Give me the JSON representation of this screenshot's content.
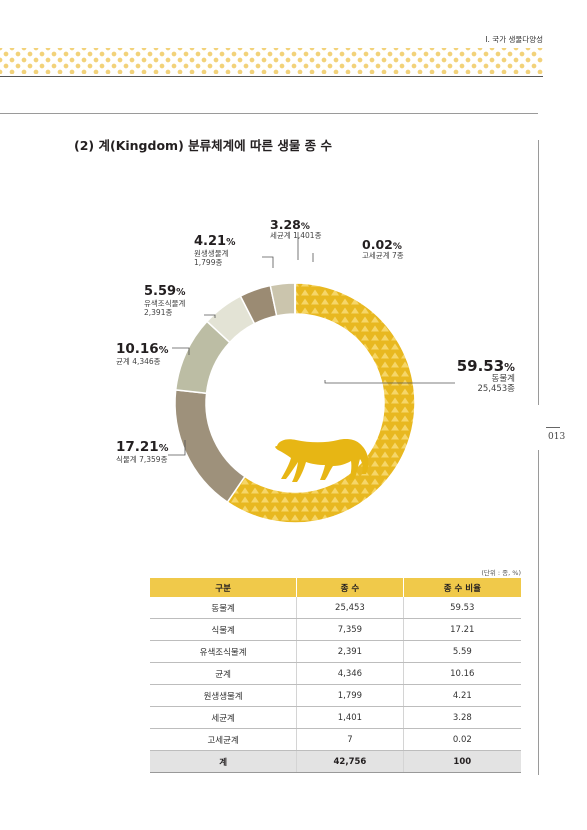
{
  "header": {
    "running_title": "Ⅰ. 국가 생물다양성"
  },
  "page_number": "013",
  "section_title": "(2) 계(Kingdom) 분류체계에 따른 생물 종 수",
  "colors": {
    "animal": "#e8b820",
    "plant": "#9e917b",
    "fungi": "#bcbda4",
    "chromista": "#e3e3d5",
    "protozoa": "#9b8b73",
    "bacteria": "#cbc5ad",
    "archaea": "#7f7663",
    "header_dots": "#f2d27a"
  },
  "chart_data": {
    "type": "pie",
    "variant": "donut",
    "labels": [
      {
        "key": "animal",
        "pct": "59.53",
        "name": "동물계",
        "count": "25,453종"
      },
      {
        "key": "plant",
        "pct": "17.21",
        "name": "식물계",
        "count": "7,359종"
      },
      {
        "key": "fungi",
        "pct": "10.16",
        "name": "균계",
        "count": "4,346종"
      },
      {
        "key": "chromista",
        "pct": "5.59",
        "name": "유색조식물계",
        "count": "2,391종"
      },
      {
        "key": "protozoa",
        "pct": "4.21",
        "name": "원생생물계",
        "count": "1,799종"
      },
      {
        "key": "bacteria",
        "pct": "3.28",
        "name": "세균계",
        "count": "1,401종"
      },
      {
        "key": "archaea",
        "pct": "0.02",
        "name": "고세균계",
        "count": "7종"
      }
    ],
    "values": [
      59.53,
      17.21,
      10.16,
      5.59,
      4.21,
      3.28,
      0.02
    ],
    "percent_sign": "%"
  },
  "table": {
    "unit": "(단위 : 종, %)",
    "headers": [
      "구분",
      "종 수",
      "종 수 비율"
    ],
    "rows": [
      [
        "동물계",
        "25,453",
        "59.53"
      ],
      [
        "식물계",
        "7,359",
        "17.21"
      ],
      [
        "유색조식물계",
        "2,391",
        "5.59"
      ],
      [
        "균계",
        "4,346",
        "10.16"
      ],
      [
        "원생생물계",
        "1,799",
        "4.21"
      ],
      [
        "세균계",
        "1,401",
        "3.28"
      ],
      [
        "고세균계",
        "7",
        "0.02"
      ]
    ],
    "total": [
      "계",
      "42,756",
      "100"
    ]
  }
}
